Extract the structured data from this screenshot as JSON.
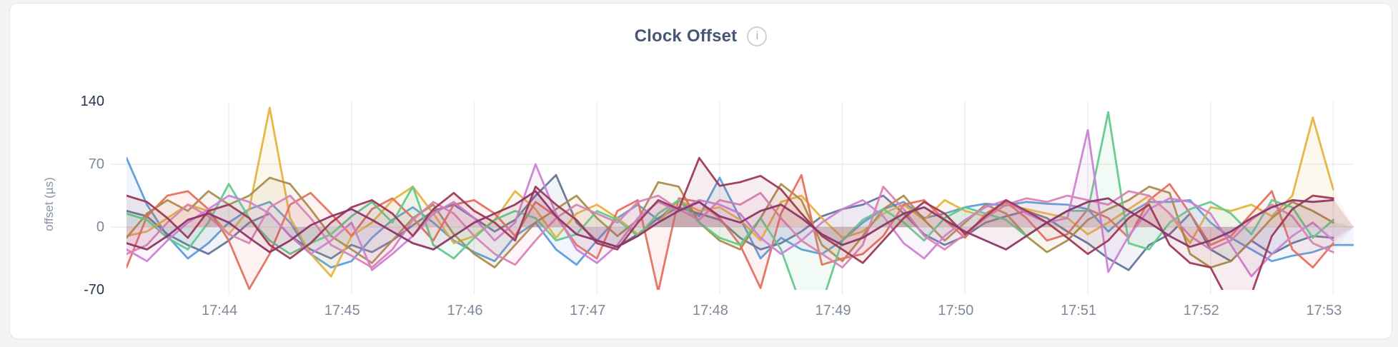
{
  "header": {
    "title": "Clock Offset",
    "info_icon": "i"
  },
  "colors": {
    "page_background": "#f4f4f5",
    "card_background": "#ffffff",
    "card_border": "#e7e8ea",
    "title_text": "#475672",
    "axis_text": "#7e899b",
    "axis_text_emphasis": "#26344e",
    "gridline": "#ececee"
  },
  "chart_data": {
    "type": "line",
    "title": "Clock Offset",
    "xlabel": "",
    "ylabel": "offset (µs)",
    "ylim": [
      -70,
      140
    ],
    "grid": true,
    "legend": "none",
    "sample_interval_seconds": 10,
    "x_start_time": "17:43:10",
    "x_tick_labels": [
      "17:44",
      "17:45",
      "17:46",
      "17:47",
      "17:48",
      "17:49",
      "17:50",
      "17:51",
      "17:52",
      "17:53"
    ],
    "x_tick_point_indices": [
      5,
      11,
      17,
      23,
      29,
      35,
      41,
      47,
      53,
      59
    ],
    "y_ticks": [
      {
        "label": "140",
        "value": 140,
        "emphasis": true,
        "gridline": false
      },
      {
        "label": "70",
        "value": 70,
        "emphasis": false,
        "gridline": true
      },
      {
        "label": "0",
        "value": 0,
        "emphasis": false,
        "gridline": true
      },
      {
        "label": "-70",
        "value": -70,
        "emphasis": true,
        "gridline": false
      }
    ],
    "series": [
      {
        "name": "blue",
        "color": "#5d9cd8",
        "values": [
          77,
          25,
          -10,
          -35,
          -18,
          5,
          20,
          28,
          5,
          -30,
          -45,
          -38,
          -12,
          8,
          22,
          5,
          -15,
          -28,
          -38,
          -10,
          5,
          -25,
          -42,
          -15,
          10,
          25,
          8,
          30,
          12,
          55,
          10,
          -35,
          -12,
          -25,
          -30,
          -15,
          5,
          20,
          28,
          10,
          15,
          22,
          26,
          24,
          28,
          26,
          25,
          20,
          -5,
          15,
          28,
          28,
          30,
          5,
          -12,
          -25,
          -38,
          -32,
          -28,
          -20,
          -20
        ]
      },
      {
        "name": "slate",
        "color": "#64759b",
        "values": [
          18,
          12,
          -8,
          -20,
          -30,
          -15,
          5,
          15,
          -10,
          -25,
          -35,
          -20,
          -28,
          -15,
          2,
          18,
          25,
          10,
          -5,
          8,
          35,
          58,
          5,
          -15,
          -22,
          -8,
          10,
          22,
          15,
          8,
          -12,
          -25,
          -18,
          -5,
          12,
          20,
          25,
          35,
          15,
          -8,
          -20,
          -10,
          5,
          12,
          18,
          10,
          -5,
          -18,
          -35,
          -48,
          -20,
          -8,
          15,
          -25,
          -38,
          -15,
          -30,
          -18,
          -10,
          -12
        ]
      },
      {
        "name": "gold",
        "color": "#e5b33f",
        "values": [
          -10,
          -5,
          10,
          25,
          18,
          -8,
          20,
          133,
          10,
          -30,
          -55,
          -10,
          5,
          30,
          45,
          15,
          -18,
          -10,
          8,
          40,
          20,
          -12,
          15,
          25,
          10,
          -8,
          5,
          30,
          18,
          22,
          8,
          -15,
          28,
          35,
          10,
          -12,
          -5,
          15,
          25,
          8,
          30,
          18,
          12,
          25,
          20,
          15,
          10,
          -8,
          5,
          20,
          35,
          15,
          -18,
          22,
          18,
          25,
          12,
          35,
          122,
          42
        ]
      },
      {
        "name": "olive",
        "color": "#ab8d49",
        "values": [
          -12,
          15,
          30,
          18,
          40,
          25,
          35,
          55,
          48,
          20,
          -10,
          -25,
          -40,
          -15,
          10,
          25,
          -8,
          -30,
          -45,
          -20,
          5,
          20,
          35,
          10,
          -10,
          8,
          50,
          45,
          5,
          -15,
          -25,
          10,
          48,
          30,
          -20,
          -38,
          -10,
          20,
          35,
          8,
          -15,
          5,
          25,
          15,
          -10,
          -28,
          -15,
          8,
          20,
          30,
          45,
          38,
          -30,
          -45,
          -38,
          -15,
          10,
          28,
          18,
          5
        ]
      },
      {
        "name": "salmon",
        "color": "#e5705f",
        "values": [
          -45,
          12,
          35,
          40,
          20,
          -15,
          -69,
          -30,
          25,
          38,
          15,
          -10,
          20,
          32,
          10,
          -15,
          25,
          30,
          15,
          -10,
          28,
          12,
          -20,
          -35,
          18,
          30,
          -72,
          32,
          28,
          10,
          -20,
          -68,
          15,
          58,
          -42,
          -35,
          -30,
          -10,
          25,
          30,
          8,
          -12,
          15,
          28,
          10,
          -15,
          -8,
          20,
          10,
          -12,
          30,
          48,
          15,
          -20,
          -10,
          15,
          40,
          -25,
          -45,
          -18
        ]
      },
      {
        "name": "mint",
        "color": "#62c98c",
        "values": [
          15,
          8,
          -12,
          -25,
          5,
          48,
          10,
          -15,
          -30,
          -18,
          -8,
          12,
          28,
          5,
          45,
          -20,
          -35,
          -12,
          8,
          18,
          10,
          -15,
          -8,
          18,
          8,
          -10,
          15,
          30,
          5,
          -12,
          -20,
          10,
          -25,
          -88,
          -85,
          -15,
          8,
          20,
          5,
          -15,
          10,
          22,
          15,
          8,
          -10,
          5,
          18,
          18,
          128,
          -18,
          -25,
          5,
          20,
          28,
          15,
          -8,
          30,
          22,
          -12,
          8
        ]
      },
      {
        "name": "orchid",
        "color": "#cc82d4",
        "values": [
          -25,
          -38,
          -15,
          5,
          20,
          35,
          28,
          15,
          -10,
          -30,
          -15,
          5,
          -48,
          -30,
          -10,
          15,
          28,
          10,
          -15,
          5,
          70,
          15,
          -25,
          -40,
          -20,
          10,
          28,
          18,
          30,
          25,
          15,
          -12,
          -30,
          -15,
          5,
          20,
          30,
          12,
          -18,
          -35,
          -10,
          8,
          22,
          30,
          15,
          5,
          10,
          108,
          -50,
          -10,
          20,
          32,
          28,
          15,
          -20,
          -55,
          -30,
          -10,
          5,
          -15
        ]
      },
      {
        "name": "pink",
        "color": "#d983b5",
        "values": [
          -30,
          -20,
          5,
          25,
          12,
          -8,
          -18,
          22,
          35,
          10,
          -20,
          -32,
          -45,
          -25,
          8,
          28,
          15,
          -10,
          -30,
          -42,
          -15,
          10,
          25,
          15,
          5,
          28,
          35,
          20,
          8,
          30,
          25,
          38,
          10,
          -15,
          -30,
          -45,
          -20,
          45,
          20,
          -10,
          -25,
          -8,
          10,
          25,
          32,
          28,
          35,
          30,
          25,
          40,
          35,
          15,
          -10,
          -25,
          -15,
          8,
          25,
          12,
          -18,
          -28
        ]
      },
      {
        "name": "maroon",
        "color": "#9e3a56",
        "values": [
          35,
          28,
          10,
          -12,
          18,
          25,
          10,
          -20,
          -35,
          -18,
          5,
          22,
          30,
          15,
          -10,
          20,
          38,
          18,
          5,
          -15,
          45,
          25,
          8,
          -18,
          -25,
          5,
          30,
          20,
          77,
          46,
          50,
          57,
          42,
          15,
          -10,
          -25,
          -40,
          -15,
          10,
          28,
          15,
          -8,
          12,
          30,
          18,
          5,
          -12,
          -30,
          -15,
          10,
          25,
          -20,
          -40,
          -45,
          -88,
          -75,
          -10,
          20,
          35,
          32
        ]
      },
      {
        "name": "plum",
        "color": "#8c3568",
        "values": [
          -18,
          -25,
          -10,
          8,
          15,
          5,
          -12,
          -28,
          -15,
          2,
          12,
          20,
          8,
          -5,
          -18,
          -25,
          -10,
          5,
          15,
          25,
          40,
          12,
          -8,
          -15,
          -22,
          -10,
          5,
          18,
          28,
          12,
          5,
          18,
          25,
          10,
          -8,
          -20,
          -12,
          2,
          15,
          22,
          8,
          -5,
          -15,
          -25,
          -10,
          5,
          18,
          28,
          32,
          18,
          5,
          -10,
          -22,
          -15,
          -5,
          10,
          22,
          30,
          28,
          30
        ]
      }
    ]
  }
}
